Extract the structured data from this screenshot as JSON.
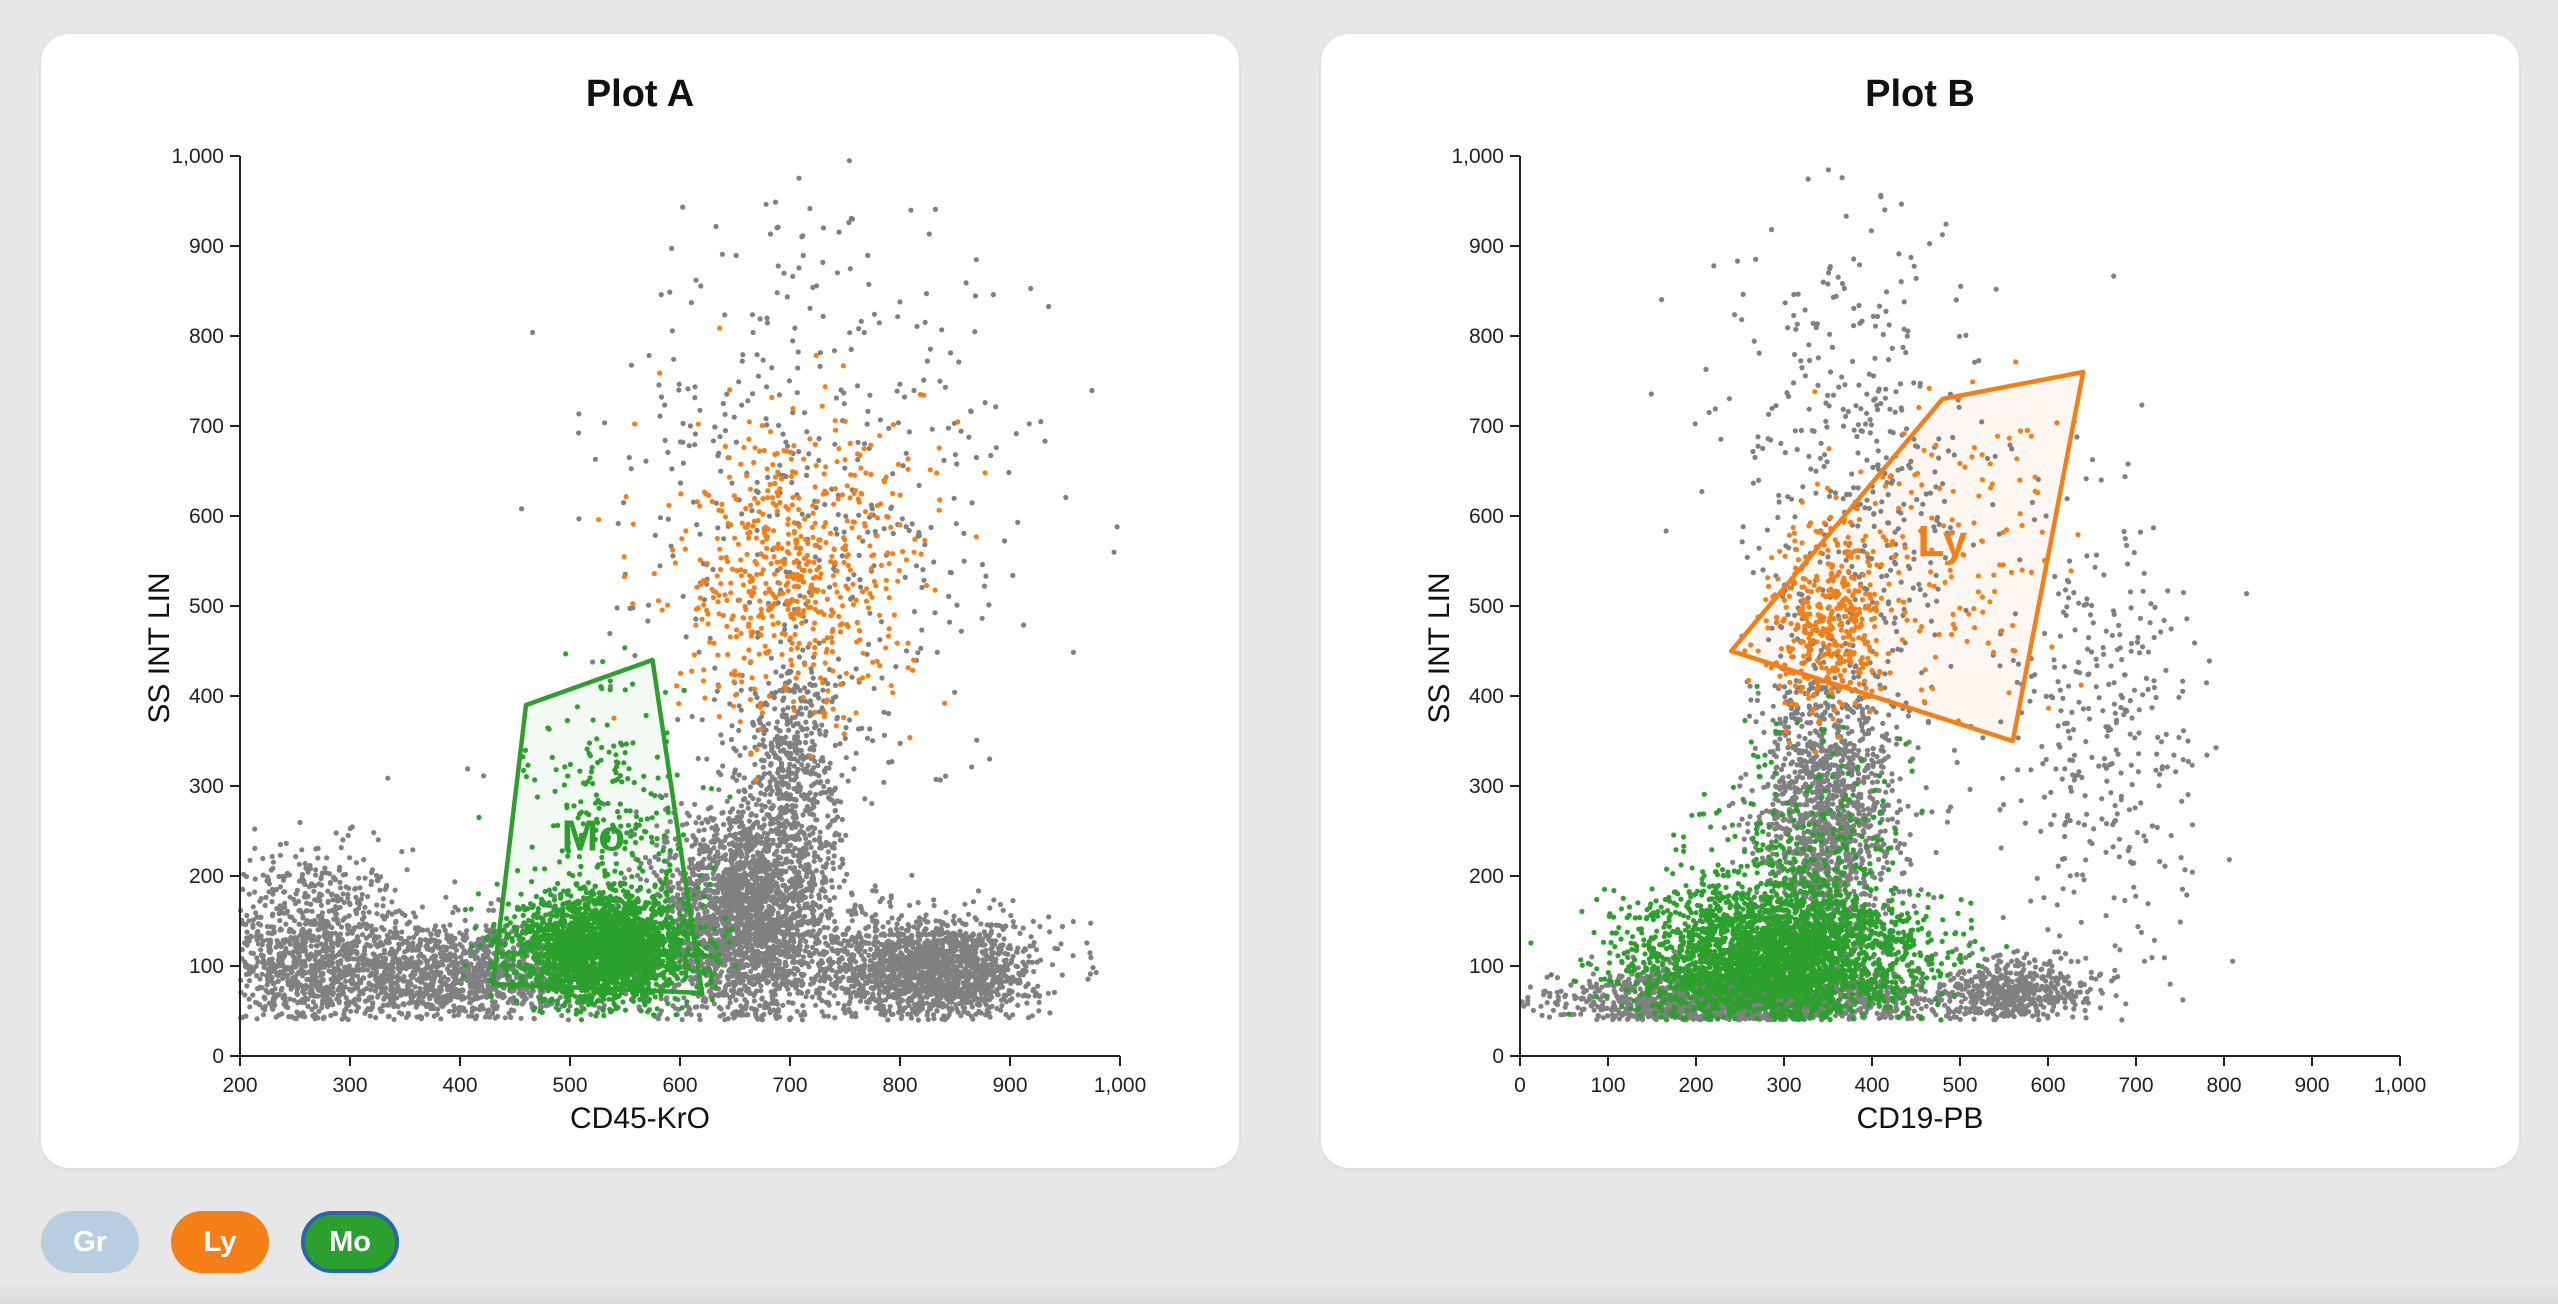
{
  "colors": {
    "gray_events": "#808080",
    "Gr": "#b7cde0",
    "Ly": "#f57f17",
    "Mo": "#2ca02c",
    "selected_border": "#2a64b4"
  },
  "legend": {
    "chips": [
      {
        "label": "Gr",
        "color": "#b7cde0",
        "selected": false
      },
      {
        "label": "Ly",
        "color": "#f57f17",
        "selected": false
      },
      {
        "label": "Mo",
        "color": "#2ca02c",
        "selected": true
      }
    ]
  },
  "chart_data": [
    {
      "type": "scatter",
      "title": "Plot A",
      "xlabel": "CD45-KrO",
      "ylabel": "SS INT LIN",
      "xlim": [
        200,
        1000
      ],
      "ylim": [
        0,
        1000
      ],
      "xticks": [
        "200",
        "300",
        "400",
        "500",
        "600",
        "700",
        "800",
        "900",
        "1,000"
      ],
      "yticks": [
        "0",
        "100",
        "200",
        "300",
        "400",
        "500",
        "600",
        "700",
        "800",
        "900",
        "1,000"
      ],
      "grid": false,
      "gate": {
        "label": "Mo",
        "color": "#2ca02c",
        "vertices": [
          [
            430,
            80
          ],
          [
            460,
            390
          ],
          [
            575,
            440
          ],
          [
            620,
            70
          ]
        ]
      },
      "series": [
        {
          "color": "#808080",
          "clusters": [
            {
              "cx": 260,
              "cy": 120,
              "sx": 45,
              "sy": 55,
              "n": 900
            },
            {
              "cx": 380,
              "cy": 90,
              "sx": 80,
              "sy": 30,
              "n": 1600
            },
            {
              "cx": 660,
              "cy": 150,
              "sx": 40,
              "sy": 60,
              "n": 2600
            },
            {
              "cx": 700,
              "cy": 320,
              "sx": 22,
              "sy": 60,
              "n": 500
            },
            {
              "cx": 830,
              "cy": 95,
              "sx": 45,
              "sy": 28,
              "n": 1800
            },
            {
              "cx": 730,
              "cy": 600,
              "sx": 100,
              "sy": 180,
              "n": 500
            }
          ]
        },
        {
          "color": "#f57f17",
          "clusters": [
            {
              "cx": 700,
              "cy": 520,
              "sx": 55,
              "sy": 75,
              "n": 550
            },
            {
              "cx": 750,
              "cy": 640,
              "sx": 60,
              "sy": 50,
              "n": 60
            }
          ]
        },
        {
          "color": "#2ca02c",
          "clusters": [
            {
              "cx": 530,
              "cy": 120,
              "sx": 40,
              "sy": 30,
              "n": 2400
            },
            {
              "cx": 540,
              "cy": 260,
              "sx": 35,
              "sy": 70,
              "n": 220
            }
          ]
        }
      ]
    },
    {
      "type": "scatter",
      "title": "Plot B",
      "xlabel": "CD19-PB",
      "ylabel": "SS INT LIN",
      "xlim": [
        0,
        1000
      ],
      "ylim": [
        0,
        1000
      ],
      "xticks": [
        "0",
        "100",
        "200",
        "300",
        "400",
        "500",
        "600",
        "700",
        "800",
        "900",
        "1,000"
      ],
      "yticks": [
        "0",
        "100",
        "200",
        "300",
        "400",
        "500",
        "600",
        "700",
        "800",
        "900",
        "1,000"
      ],
      "grid": false,
      "gate": {
        "label": "Ly",
        "color": "#f57f17",
        "vertices": [
          [
            240,
            450
          ],
          [
            480,
            730
          ],
          [
            640,
            760
          ],
          [
            560,
            350
          ]
        ]
      },
      "series": [
        {
          "color": "#808080",
          "clusters": [
            {
              "cx": 250,
              "cy": 60,
              "sx": 100,
              "sy": 18,
              "n": 2200
            },
            {
              "cx": 350,
              "cy": 260,
              "sx": 40,
              "sy": 90,
              "n": 1500
            },
            {
              "cx": 560,
              "cy": 70,
              "sx": 40,
              "sy": 20,
              "n": 600
            },
            {
              "cx": 380,
              "cy": 650,
              "sx": 70,
              "sy": 150,
              "n": 450
            },
            {
              "cx": 660,
              "cy": 350,
              "sx": 60,
              "sy": 140,
              "n": 350
            }
          ]
        },
        {
          "color": "#f57f17",
          "clusters": [
            {
              "cx": 350,
              "cy": 480,
              "sx": 35,
              "sy": 55,
              "n": 420
            },
            {
              "cx": 480,
              "cy": 560,
              "sx": 70,
              "sy": 90,
              "n": 140
            }
          ]
        },
        {
          "color": "#2ca02c",
          "clusters": [
            {
              "cx": 290,
              "cy": 110,
              "sx": 80,
              "sy": 40,
              "n": 3200
            },
            {
              "cx": 320,
              "cy": 240,
              "sx": 60,
              "sy": 60,
              "n": 250
            }
          ]
        }
      ]
    }
  ]
}
